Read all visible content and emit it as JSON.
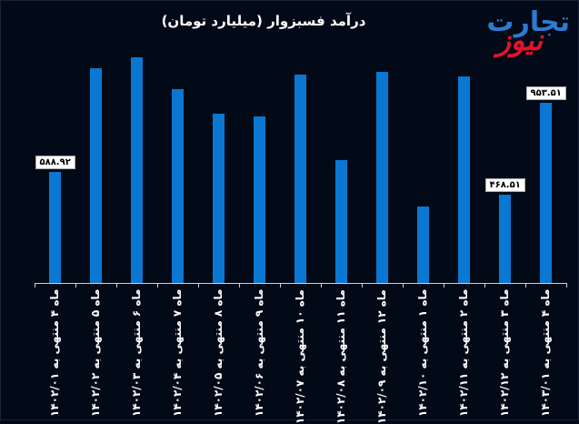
{
  "title": "درآمد فسبزوار (میلیارد تومان)",
  "logo": {
    "part1": "تجارت",
    "part2": "نیوز",
    "color1": "#2e7ad1",
    "color2": "#e3132a"
  },
  "colors": {
    "background": "#020a18",
    "bar": "#0a78d2",
    "axis": "#c9d3df"
  },
  "chart_data": {
    "type": "bar",
    "title": "درآمد فسبزوار (میلیارد تومان)",
    "xlabel": "",
    "ylabel": "میلیارد تومان",
    "grid": false,
    "legend": null,
    "ylim": [
      0,
      1300
    ],
    "categories": [
      "ماه ۴ منتهی به ۱۴۰۲/۰۱",
      "ماه ۵ منتهی به ۱۴۰۲/۰۲",
      "ماه ۶ منتهی به ۱۴۰۲/۰۳",
      "ماه ۷ منتهی به ۱۴۰۲/۰۴",
      "ماه ۸ منتهی به ۱۴۰۲/۰۵",
      "ماه ۹ منتهی به ۱۴۰۲/۰۶",
      "ماه ۱۰ منتهی به ۱۴۰۲/۰۷",
      "ماه ۱۱ منتهی به ۱۴۰۲/۰۸",
      "ماه ۱۲ منتهی به ۱۴۰۲/۰۹",
      "ماه ۱ منتهی به ۱۴۰۲/۱۰",
      "ماه ۲ منتهی به ۱۴۰۲/۱۱",
      "ماه ۳ منتهی به ۱۴۰۲/۱۲",
      "ماه ۴ منتهی به ۱۴۰۳/۰۱"
    ],
    "values": [
      588.92,
      1140,
      1198,
      1029,
      898,
      884,
      1106,
      652,
      1121,
      406,
      1097,
      468.51,
      953.51
    ],
    "data_labels": [
      {
        "index": 0,
        "text": "۵۸۸.۹۲"
      },
      {
        "index": 11,
        "text": "۴۶۸.۵۱"
      },
      {
        "index": 12,
        "text": "۹۵۳.۵۱"
      }
    ]
  }
}
